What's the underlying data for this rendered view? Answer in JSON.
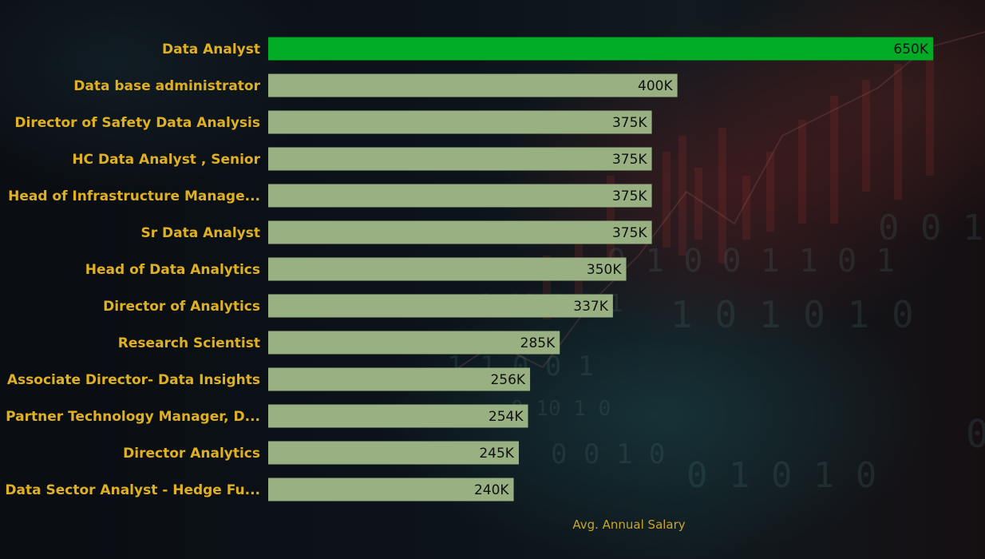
{
  "chart_data": {
    "type": "bar",
    "orientation": "horizontal",
    "categories": [
      "Data Analyst",
      "Data base administrator",
      "Director of Safety Data Analysis",
      "HC Data Analyst , Senior",
      "Head of Infrastructure Manage...",
      "Sr Data Analyst",
      "Head of Data Analytics",
      "Director of Analytics",
      "Research Scientist",
      "Associate Director- Data Insights",
      "Partner Technology Manager, D...",
      "Director Analytics",
      "Data Sector Analyst - Hedge Fu..."
    ],
    "values": [
      650000,
      400000,
      375000,
      375000,
      375000,
      375000,
      350000,
      337000,
      285000,
      256000,
      254000,
      245000,
      240000
    ],
    "data_labels": [
      "650K",
      "400K",
      "375K",
      "375K",
      "375K",
      "375K",
      "350K",
      "337K",
      "285K",
      "256K",
      "254K",
      "245K",
      "240K"
    ],
    "xlabel": "Avg. Annual Salary",
    "xlim": [
      0,
      650000
    ],
    "grid": false,
    "legend": "none",
    "colors": {
      "highlight": "#00ac26",
      "bar": "#98b082",
      "category_label": "#e0b023",
      "axis_title": "#c9a52a",
      "value_label": "#111111"
    }
  }
}
